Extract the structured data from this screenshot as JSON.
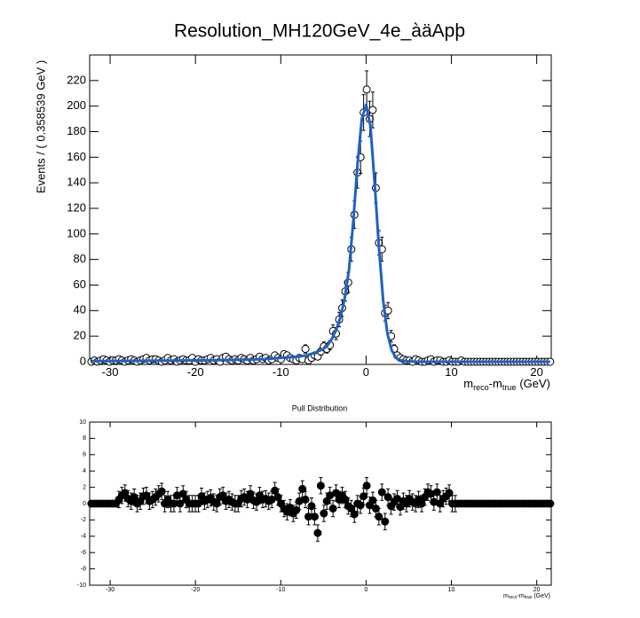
{
  "chart_data": [
    {
      "type": "scatter",
      "title": "Resolution_MH120GeV_4e_àäApþ",
      "xlabel": [
        "m",
        "reco",
        "-m",
        "true",
        "(GeV)"
      ],
      "ylabel": "Events / ( 0.358539 GeV )",
      "xlim": [
        -32.4,
        21.7
      ],
      "ylim": [
        -2.1,
        240
      ],
      "xticks": [
        -30,
        -20,
        -10,
        0,
        10,
        20
      ],
      "yticks": [
        0,
        20,
        40,
        60,
        80,
        100,
        120,
        140,
        160,
        180,
        200,
        220
      ],
      "series": [
        {
          "style": "points",
          "color": "#000000",
          "x": [
            -32.2,
            -31.84,
            -31.48,
            -31.12,
            -30.77,
            -30.41,
            -30.05,
            -29.69,
            -29.33,
            -28.97,
            -28.62,
            -28.26,
            -27.9,
            -27.54,
            -27.18,
            -26.82,
            -26.46,
            -26.11,
            -25.75,
            -25.39,
            -25.03,
            -24.67,
            -24.31,
            -23.95,
            -23.6,
            -23.24,
            -22.88,
            -22.52,
            -22.16,
            -21.8,
            -21.45,
            -21.09,
            -20.73,
            -20.37,
            -20.01,
            -19.65,
            -19.29,
            -18.94,
            -18.58,
            -18.22,
            -17.86,
            -17.5,
            -17.14,
            -16.78,
            -16.43,
            -16.07,
            -15.71,
            -15.35,
            -14.99,
            -14.63,
            -14.28,
            -13.92,
            -13.56,
            -13.2,
            -12.84,
            -12.48,
            -12.12,
            -11.77,
            -11.41,
            -11.05,
            -10.69,
            -10.33,
            -9.97,
            -9.61,
            -9.26,
            -8.9,
            -8.54,
            -8.18,
            -7.82,
            -7.46,
            -7.11,
            -6.75,
            -6.39,
            -6.03,
            -5.67,
            -5.31,
            -4.95,
            -4.6,
            -4.24,
            -3.88,
            -3.52,
            -3.16,
            -2.8,
            -2.44,
            -2.09,
            -1.73,
            -1.37,
            -1.01,
            -0.65,
            -0.29,
            0.07,
            0.42,
            0.78,
            1.14,
            1.5,
            1.86,
            2.22,
            2.57,
            2.93,
            3.29,
            3.65,
            4.01,
            4.37,
            4.73,
            5.08,
            5.44,
            5.8,
            6.16,
            6.52,
            6.88,
            7.24,
            7.59,
            7.95,
            8.31,
            8.67,
            9.03,
            9.39,
            9.74,
            10.1,
            10.46,
            10.82,
            11.18,
            11.54,
            11.9,
            12.25,
            12.61,
            12.97,
            13.33,
            13.69,
            14.05,
            14.41,
            14.76,
            15.12,
            15.48,
            15.84,
            16.2,
            16.56,
            16.91,
            17.27,
            17.63,
            17.99,
            18.35,
            18.71,
            19.07,
            19.42,
            19.78,
            20.14,
            20.5,
            20.86,
            21.22,
            21.58
          ],
          "values": [
            0,
            1,
            0,
            1,
            2,
            1,
            0,
            1,
            1,
            2,
            1,
            0,
            1,
            2,
            1,
            0,
            1,
            2,
            3,
            1,
            2,
            2,
            1,
            0,
            1,
            3,
            1,
            2,
            0,
            1,
            2,
            1,
            1,
            3,
            0,
            2,
            1,
            1,
            2,
            3,
            1,
            2,
            0,
            3,
            4,
            2,
            1,
            2,
            1,
            3,
            2,
            1,
            3,
            1,
            2,
            4,
            2,
            3,
            1,
            2,
            5,
            3,
            2,
            6,
            5,
            3,
            2,
            1,
            3,
            2,
            10,
            1,
            3,
            5,
            4,
            8,
            12,
            10,
            13,
            24,
            22,
            33,
            42,
            55,
            62,
            88,
            115,
            148,
            160,
            195,
            213,
            190,
            197,
            136,
            93,
            88,
            38,
            40,
            20,
            10,
            5,
            3,
            2,
            1,
            1,
            0,
            2,
            1,
            0,
            0,
            1,
            2,
            0,
            1,
            1,
            0,
            0,
            1,
            0,
            0,
            0,
            1,
            0,
            0,
            0,
            0,
            0,
            0,
            0,
            0,
            0,
            0,
            0,
            0,
            0,
            0,
            0,
            0,
            0,
            0,
            0,
            0,
            0,
            0,
            0,
            0,
            0,
            0,
            0,
            0,
            0
          ],
          "errors": [
            1,
            1,
            1,
            1,
            1.4,
            1,
            1,
            1,
            1,
            1.4,
            1,
            1,
            1,
            1.4,
            1,
            1,
            1,
            1.4,
            1.7,
            1,
            1.4,
            1.4,
            1,
            1,
            1,
            1.7,
            1,
            1.4,
            1,
            1,
            1.4,
            1,
            1,
            1.7,
            1,
            1.4,
            1,
            1,
            1.4,
            1.7,
            1,
            1.4,
            1,
            1.7,
            2,
            1.4,
            1,
            1.4,
            1,
            1.7,
            1.4,
            1,
            1.7,
            1,
            1.4,
            2,
            1.4,
            1.7,
            1,
            1.4,
            2.2,
            1.7,
            1.4,
            2.4,
            2.2,
            1.7,
            1.4,
            1,
            1.7,
            1.4,
            3.2,
            1,
            1.7,
            2.2,
            2,
            2.8,
            3.5,
            3.2,
            3.6,
            4.9,
            4.7,
            5.7,
            6.5,
            7.4,
            7.9,
            9.4,
            10.7,
            12.2,
            12.6,
            14,
            14.6,
            13.8,
            14,
            11.7,
            9.6,
            9.4,
            6.2,
            6.3,
            4.5,
            3.2,
            2.2,
            1.7,
            1.4,
            1,
            1,
            1,
            1.4,
            1,
            1,
            1,
            1,
            1.4,
            1,
            1,
            1,
            1,
            1,
            1,
            1,
            1,
            1,
            1,
            1,
            1,
            1,
            1,
            1,
            1,
            1,
            1,
            1,
            1,
            1,
            1,
            1,
            1,
            1,
            1,
            1,
            1,
            1,
            1,
            1,
            1,
            1,
            1,
            1,
            1,
            1,
            1,
            1
          ]
        },
        {
          "style": "line",
          "color": "#1f62c0",
          "x": [
            -32.2,
            -20,
            -15,
            -12,
            -10,
            -8,
            -7,
            -6,
            -5,
            -4.5,
            -4,
            -3.5,
            -3,
            -2.5,
            -2,
            -1.5,
            -1,
            -0.5,
            0,
            0.5,
            1,
            1.5,
            2,
            2.5,
            3,
            3.5,
            4,
            5,
            6,
            8,
            10,
            15,
            21.58
          ],
          "values": [
            0.5,
            1,
            1.5,
            2,
            3,
            4,
            5,
            7,
            10,
            13,
            18,
            25,
            35,
            50,
            72,
            110,
            155,
            190,
            201,
            185,
            140,
            90,
            48,
            22,
            9,
            3,
            1,
            0.3,
            0,
            0,
            0,
            0,
            0
          ]
        }
      ]
    },
    {
      "type": "scatter",
      "title": "Pull Distribution",
      "xlabel": [
        "m",
        "reco",
        "-m",
        "true",
        "(GeV)"
      ],
      "xlim": [
        -32.4,
        21.7
      ],
      "ylim": [
        -10,
        10
      ],
      "xticks": [
        -30,
        -20,
        -10,
        0,
        10,
        20
      ],
      "yticks": [
        -10,
        -8,
        -6,
        -4,
        -2,
        0,
        2,
        4,
        6,
        8,
        10
      ],
      "series": [
        {
          "style": "filled-points",
          "color": "#000000",
          "values": [
            0,
            0,
            0,
            0,
            0,
            0,
            0,
            0,
            0,
            0.5,
            1,
            1.3,
            0.6,
            0.3,
            0.8,
            0,
            0.3,
            0.9,
            1,
            0.3,
            0.5,
            0.8,
            1.2,
            1.5,
            0,
            0.5,
            0,
            0,
            1,
            0,
            1.2,
            0.5,
            0,
            0,
            0,
            0,
            0.9,
            0.3,
            0.5,
            0.7,
            0.2,
            0,
            0.8,
            1,
            0.3,
            0.5,
            0.2,
            0,
            0,
            0.6,
            0.8,
            0.5,
            1.2,
            0.4,
            0.2,
            1,
            0.5,
            0.6,
            0.3,
            0.5,
            1.6,
            0.8,
            0,
            -0.6,
            -1,
            -0.5,
            -1.2,
            -0.8,
            0.3,
            1.8,
            0.5,
            -1.6,
            -0.3,
            -1.6,
            -3.6,
            2.2,
            -1.2,
            0.3,
            1,
            -0.6,
            1.3,
            0.5,
            1,
            0.5,
            -0.3,
            -0.6,
            -1.3,
            0,
            -0.2,
            0.9,
            2.2,
            -0.2,
            0.4,
            -0.6,
            -1.6,
            1.4,
            -2.2,
            0.8,
            -0.3,
            0.2,
            0.6,
            -0.4,
            0.3,
            0,
            0.6,
            0.2,
            0,
            0.5,
            0,
            0.8,
            1.4,
            1.2,
            0.2,
            1.4,
            0,
            0.6,
            0.9,
            1.3,
            0,
            0,
            0,
            0,
            0,
            0,
            0,
            0,
            0,
            0,
            0,
            0,
            0,
            0,
            0,
            0,
            0,
            0,
            0,
            0,
            0,
            0,
            0,
            0,
            0,
            0,
            0,
            0,
            0,
            0,
            0,
            0,
            0
          ],
          "errors": [
            0,
            0,
            0,
            0,
            0,
            0,
            0,
            0,
            0,
            1,
            1,
            1,
            1,
            1,
            1,
            1,
            1,
            1,
            1,
            1,
            1,
            1,
            1,
            1,
            1,
            1,
            1,
            1,
            1,
            1,
            1,
            1,
            1,
            1,
            1,
            1,
            1,
            1,
            1,
            1,
            1,
            1,
            1,
            1,
            1,
            1,
            1,
            1,
            1,
            1,
            1,
            1,
            1,
            1,
            1,
            1,
            1,
            1,
            1,
            1,
            1,
            1,
            1,
            1,
            1,
            1,
            1,
            1,
            1,
            1,
            1,
            1,
            1,
            1,
            1,
            1,
            1,
            1,
            1,
            1,
            1,
            1,
            1,
            1,
            1,
            1,
            1,
            1,
            1,
            1,
            1,
            1,
            1,
            1,
            1,
            1,
            1,
            1,
            1,
            1,
            1,
            1,
            1,
            1,
            1,
            1,
            1,
            1,
            1,
            1,
            1,
            1,
            1,
            1,
            1,
            1,
            1,
            1,
            1,
            1,
            0,
            0,
            0,
            0,
            0,
            0,
            0,
            0,
            0,
            0,
            0,
            0,
            0,
            0,
            0,
            0,
            0,
            0,
            0,
            0,
            0,
            0,
            0,
            0,
            0,
            0,
            0,
            0,
            0,
            0,
            0
          ]
        }
      ]
    }
  ]
}
